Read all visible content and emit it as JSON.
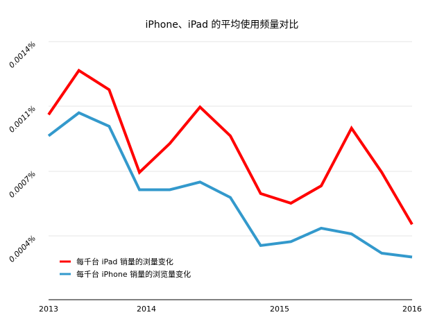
{
  "chart_data": {
    "type": "line",
    "title": "iPhone、iPad 的平均使用频量对比",
    "xlabel": "",
    "ylabel": "",
    "x_ticks": [
      "2013",
      "2014",
      "2015",
      "2016"
    ],
    "y_ticks": [
      "0.0014%",
      "0.0011%",
      "0.0007%",
      "0.0004%"
    ],
    "grid": true,
    "legend_position": "bottom-left",
    "series": [
      {
        "name": "每千台 iPad 销量的浏量变化",
        "color": "#ff0000",
        "x": [
          2013.0,
          2013.25,
          2013.5,
          2013.75,
          2014.0,
          2014.25,
          2014.5,
          2014.75,
          2015.0,
          2015.25,
          2015.5,
          2015.75,
          2016.0
        ],
        "values": [
          0.00102,
          0.00125,
          0.00115,
          0.00072,
          0.00087,
          0.00106,
          0.00091,
          0.00061,
          0.00056,
          0.00065,
          0.00095,
          0.00072,
          0.00045
        ]
      },
      {
        "name": "每千台 iPhone 销量的浏览量变化",
        "color": "#3399cc",
        "x": [
          2013.0,
          2013.25,
          2013.5,
          2013.75,
          2014.0,
          2014.25,
          2014.5,
          2014.75,
          2015.0,
          2015.25,
          2015.5,
          2015.75,
          2016.0
        ],
        "values": [
          0.00091,
          0.00103,
          0.00096,
          0.00063,
          0.00063,
          0.00067,
          0.00059,
          0.00034,
          0.00036,
          0.00043,
          0.0004,
          0.0003,
          0.00028
        ]
      }
    ]
  }
}
